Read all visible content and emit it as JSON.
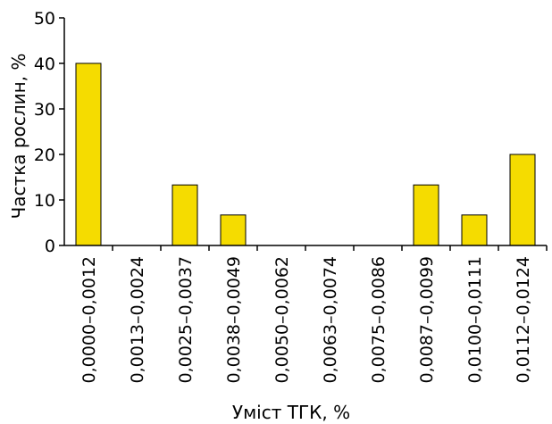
{
  "colors": {
    "bar_fill": "#f5dc00",
    "axis": "#000000"
  },
  "chart_data": {
    "type": "bar",
    "title": "",
    "xlabel": "Уміст ТГК, %",
    "ylabel": "Частка рослин, %",
    "ylim": [
      0,
      50
    ],
    "yticks": [
      0,
      10,
      20,
      30,
      40,
      50
    ],
    "grid": false,
    "categories": [
      "0,0000–0,0012",
      "0,0013–0,0024",
      "0,0025–0,0037",
      "0,0038–0,0049",
      "0,0050–0,0062",
      "0,0063–0,0074",
      "0,0075–0,0086",
      "0,0087–0,0099",
      "0,0100–0,0111",
      "0,0112–0,0124"
    ],
    "values": [
      40,
      0,
      13.3,
      6.7,
      0,
      0,
      0,
      13.3,
      6.7,
      20
    ]
  }
}
